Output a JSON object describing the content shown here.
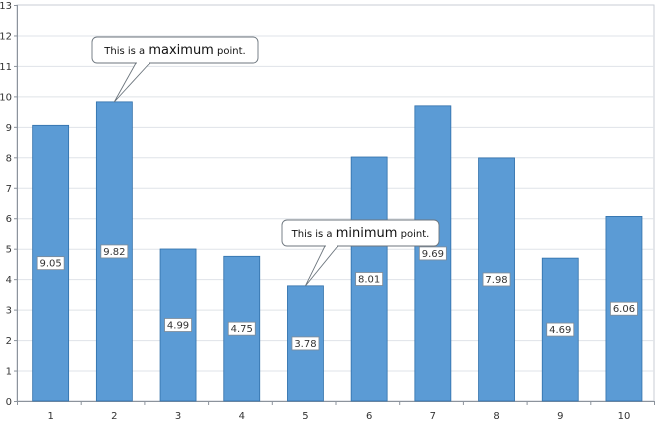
{
  "chart_data": {
    "type": "bar",
    "categories": [
      "1",
      "2",
      "3",
      "4",
      "5",
      "6",
      "7",
      "8",
      "9",
      "10"
    ],
    "values": [
      9.05,
      9.82,
      4.99,
      4.75,
      3.78,
      8.01,
      9.69,
      7.98,
      4.69,
      6.06
    ],
    "data_labels": [
      "9.05",
      "9.82",
      "4.99",
      "4.75",
      "3.78",
      "8.01",
      "9.69",
      "7.98",
      "4.69",
      "6.06"
    ],
    "ylim": [
      0,
      13
    ],
    "yticks": [
      "0",
      "1",
      "2",
      "3",
      "4",
      "5",
      "6",
      "7",
      "8",
      "9",
      "10",
      "11",
      "12",
      "13"
    ],
    "grid": true,
    "bar_color": "#5b9bd5",
    "bar_border_color": "#2f6fa9",
    "grid_color": "#dfe3e8",
    "annotations": [
      {
        "category_index": 1,
        "prefix": "This is a ",
        "emphasis": "maximum",
        "suffix": " point."
      },
      {
        "category_index": 4,
        "prefix": "This is a ",
        "emphasis": "minimum",
        "suffix": " point."
      }
    ]
  }
}
